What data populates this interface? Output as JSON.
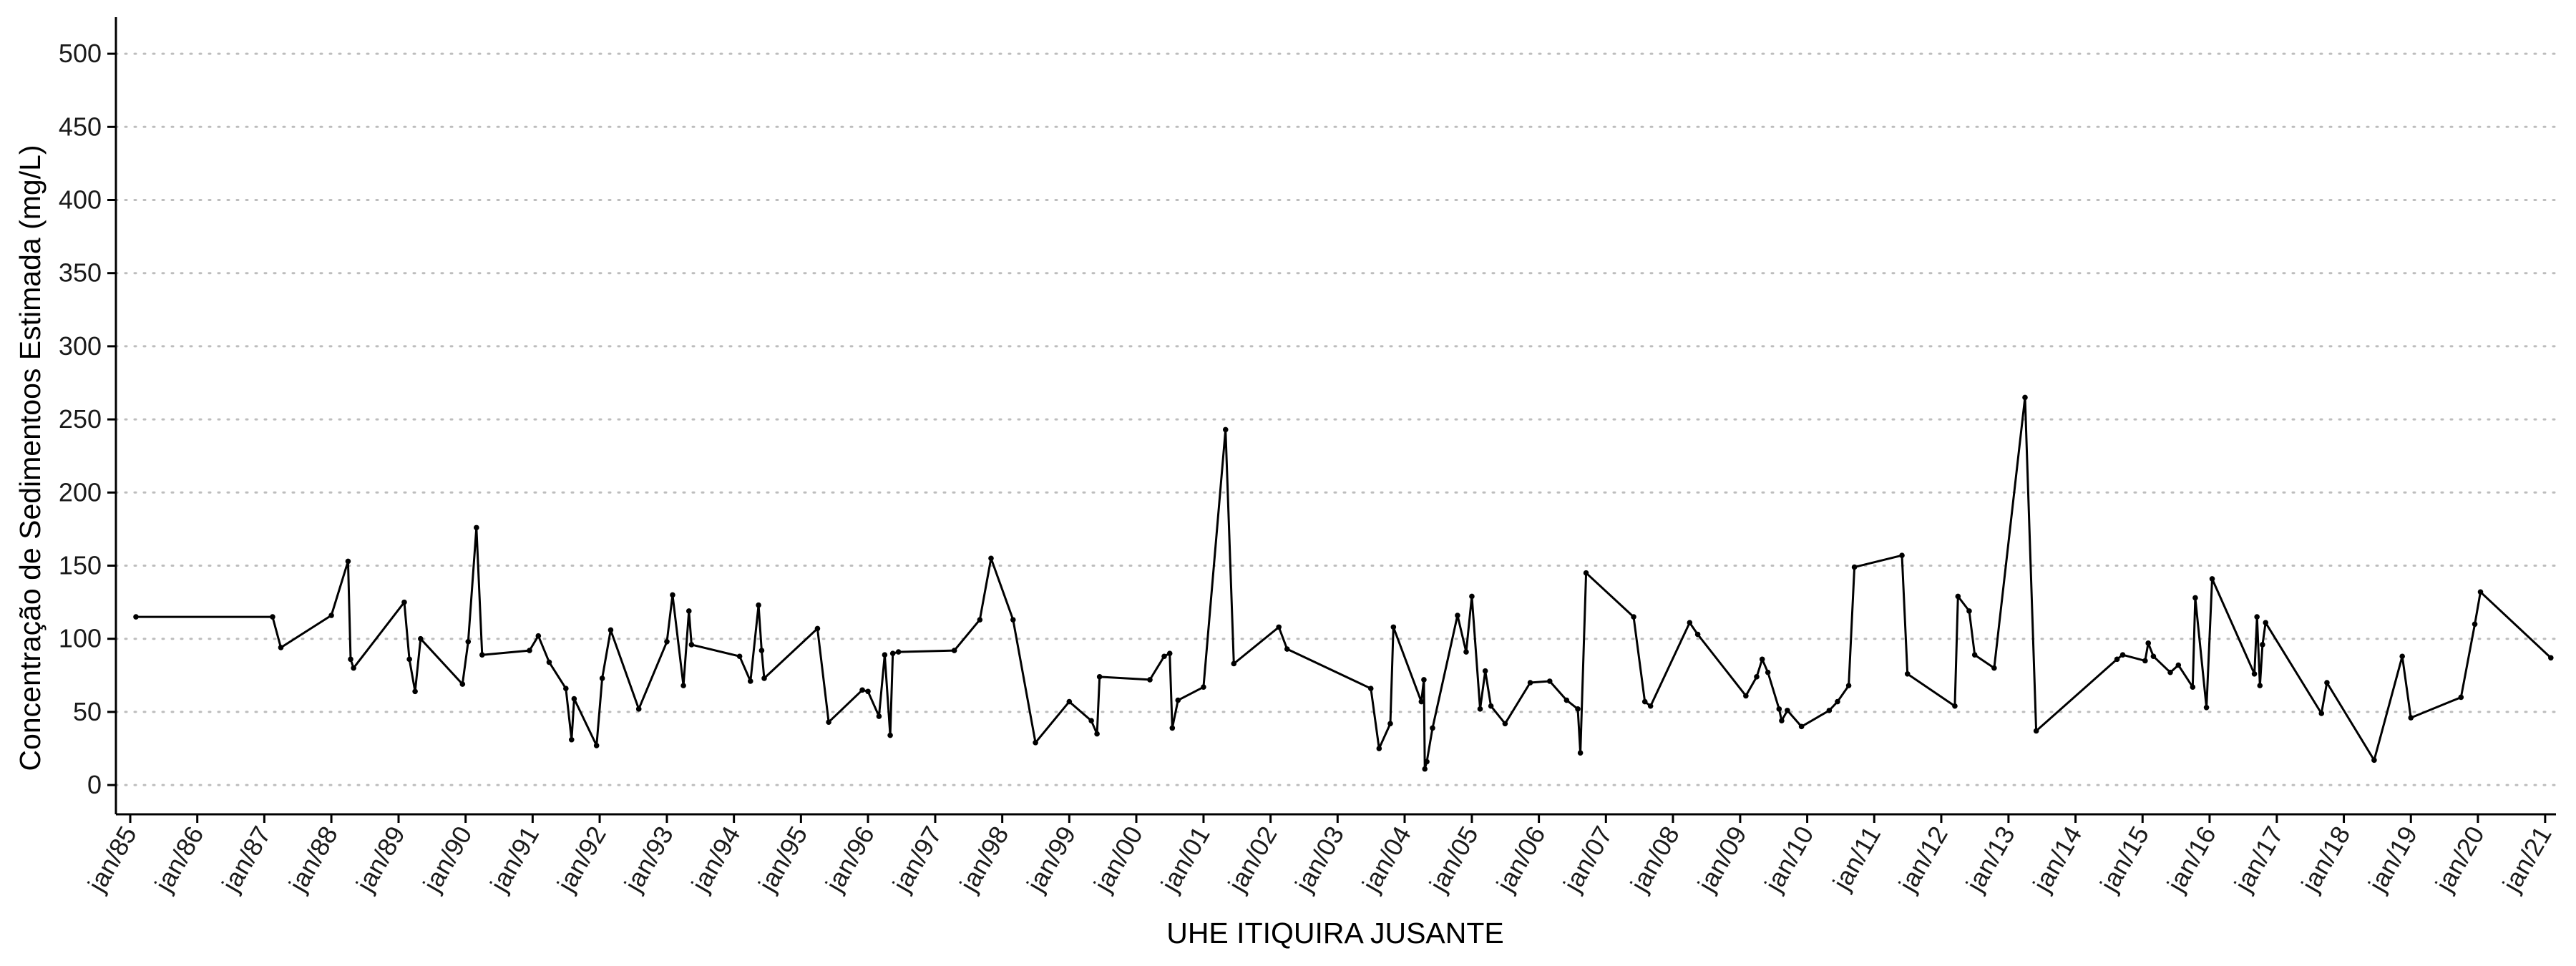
{
  "chart_data": {
    "type": "line",
    "xlabel": "UHE ITIQUIRA JUSANTE",
    "ylabel": "Concentração de Sedimentoos Estimada (mg/L)",
    "ylim": [
      -20,
      525
    ],
    "xlim": [
      "1984-10-15",
      "2021-03-01"
    ],
    "grid": "horizontal dotted",
    "y_ticks": [
      0,
      50,
      100,
      150,
      200,
      250,
      300,
      350,
      400,
      450,
      500
    ],
    "x_ticks": [
      {
        "date": "1985-01-01",
        "label": "jan/85"
      },
      {
        "date": "1986-01-01",
        "label": "jan/86"
      },
      {
        "date": "1987-01-01",
        "label": "jan/87"
      },
      {
        "date": "1988-01-01",
        "label": "jan/88"
      },
      {
        "date": "1989-01-01",
        "label": "jan/89"
      },
      {
        "date": "1990-01-01",
        "label": "jan/90"
      },
      {
        "date": "1991-01-01",
        "label": "jan/91"
      },
      {
        "date": "1992-01-01",
        "label": "jan/92"
      },
      {
        "date": "1993-01-01",
        "label": "jan/93"
      },
      {
        "date": "1994-01-01",
        "label": "jan/94"
      },
      {
        "date": "1995-01-01",
        "label": "jan/95"
      },
      {
        "date": "1996-01-01",
        "label": "jan/96"
      },
      {
        "date": "1997-01-01",
        "label": "jan/97"
      },
      {
        "date": "1998-01-01",
        "label": "jan/98"
      },
      {
        "date": "1999-01-01",
        "label": "jan/99"
      },
      {
        "date": "2000-01-01",
        "label": "jan/00"
      },
      {
        "date": "2001-01-01",
        "label": "jan/01"
      },
      {
        "date": "2002-01-01",
        "label": "jan/02"
      },
      {
        "date": "2003-01-01",
        "label": "jan/03"
      },
      {
        "date": "2004-01-01",
        "label": "jan/04"
      },
      {
        "date": "2005-01-01",
        "label": "jan/05"
      },
      {
        "date": "2006-01-01",
        "label": "jan/06"
      },
      {
        "date": "2007-01-01",
        "label": "jan/07"
      },
      {
        "date": "2008-01-01",
        "label": "jan/08"
      },
      {
        "date": "2009-01-01",
        "label": "jan/09"
      },
      {
        "date": "2010-01-01",
        "label": "jan/10"
      },
      {
        "date": "2011-01-01",
        "label": "jan/11"
      },
      {
        "date": "2012-01-01",
        "label": "jan/12"
      },
      {
        "date": "2013-01-01",
        "label": "jan/13"
      },
      {
        "date": "2014-01-01",
        "label": "jan/14"
      },
      {
        "date": "2015-01-01",
        "label": "jan/15"
      },
      {
        "date": "2016-01-01",
        "label": "jan/16"
      },
      {
        "date": "2017-01-01",
        "label": "jan/17"
      },
      {
        "date": "2018-01-01",
        "label": "jan/18"
      },
      {
        "date": "2019-01-01",
        "label": "jan/19"
      },
      {
        "date": "2020-01-01",
        "label": "jan/20"
      },
      {
        "date": "2021-01-01",
        "label": "jan/21"
      }
    ],
    "series": [
      {
        "color": "#000000",
        "points": [
          [
            "1985-02-01",
            115
          ],
          [
            "1987-02-15",
            115
          ],
          [
            "1987-04-01",
            94
          ],
          [
            "1988-01-01",
            116
          ],
          [
            "1988-04-01",
            153
          ],
          [
            "1988-04-15",
            86
          ],
          [
            "1988-05-01",
            80
          ],
          [
            "1989-02-01",
            125
          ],
          [
            "1989-03-01",
            86
          ],
          [
            "1989-04-01",
            64
          ],
          [
            "1989-05-01",
            100
          ],
          [
            "1989-12-15",
            69
          ],
          [
            "1990-01-15",
            98
          ],
          [
            "1990-03-01",
            176
          ],
          [
            "1990-04-01",
            89
          ],
          [
            "1990-12-15",
            92
          ],
          [
            "1991-02-01",
            102
          ],
          [
            "1991-04-01",
            84
          ],
          [
            "1991-07-01",
            66
          ],
          [
            "1991-08-01",
            31
          ],
          [
            "1991-08-15",
            59
          ],
          [
            "1991-12-15",
            27
          ],
          [
            "1992-01-15",
            73
          ],
          [
            "1992-03-01",
            106
          ],
          [
            "1992-08-01",
            52
          ],
          [
            "1993-01-01",
            98
          ],
          [
            "1993-02-01",
            130
          ],
          [
            "1993-04-01",
            68
          ],
          [
            "1993-05-01",
            119
          ],
          [
            "1993-05-15",
            96
          ],
          [
            "1994-02-01",
            88
          ],
          [
            "1994-04-01",
            71
          ],
          [
            "1994-05-15",
            123
          ],
          [
            "1994-06-01",
            92
          ],
          [
            "1994-06-15",
            73
          ],
          [
            "1995-04-01",
            107
          ],
          [
            "1995-06-01",
            43
          ],
          [
            "1995-12-01",
            65
          ],
          [
            "1996-01-01",
            64
          ],
          [
            "1996-03-01",
            47
          ],
          [
            "1996-04-01",
            89
          ],
          [
            "1996-05-01",
            34
          ],
          [
            "1996-05-15",
            90
          ],
          [
            "1996-06-15",
            91
          ],
          [
            "1997-04-15",
            92
          ],
          [
            "1997-09-01",
            113
          ],
          [
            "1997-11-01",
            155
          ],
          [
            "1998-03-01",
            113
          ],
          [
            "1998-07-01",
            29
          ],
          [
            "1999-01-01",
            57
          ],
          [
            "1999-05-01",
            44
          ],
          [
            "1999-06-01",
            35
          ],
          [
            "1999-06-15",
            74
          ],
          [
            "2000-03-15",
            72
          ],
          [
            "2000-06-01",
            88
          ],
          [
            "2000-07-01",
            90
          ],
          [
            "2000-07-15",
            39
          ],
          [
            "2000-08-15",
            58
          ],
          [
            "2001-01-01",
            67
          ],
          [
            "2001-05-01",
            243
          ],
          [
            "2001-06-15",
            83
          ],
          [
            "2002-02-15",
            108
          ],
          [
            "2002-04-01",
            93
          ],
          [
            "2003-07-01",
            66
          ],
          [
            "2003-08-15",
            25
          ],
          [
            "2003-10-15",
            42
          ],
          [
            "2003-11-01",
            108
          ],
          [
            "2004-04-01",
            57
          ],
          [
            "2004-04-15",
            72
          ],
          [
            "2004-04-20",
            11
          ],
          [
            "2004-05-01",
            16
          ],
          [
            "2004-06-01",
            39
          ],
          [
            "2004-10-15",
            116
          ],
          [
            "2004-12-01",
            91
          ],
          [
            "2005-01-01",
            129
          ],
          [
            "2005-02-15",
            52
          ],
          [
            "2005-03-15",
            78
          ],
          [
            "2005-04-15",
            54
          ],
          [
            "2005-07-01",
            42
          ],
          [
            "2005-11-15",
            70
          ],
          [
            "2006-03-01",
            71
          ],
          [
            "2006-06-01",
            58
          ],
          [
            "2006-08-01",
            52
          ],
          [
            "2006-08-15",
            22
          ],
          [
            "2006-09-15",
            145
          ],
          [
            "2007-06-01",
            115
          ],
          [
            "2007-08-01",
            57
          ],
          [
            "2007-09-01",
            54
          ],
          [
            "2008-04-01",
            111
          ],
          [
            "2008-05-15",
            103
          ],
          [
            "2009-02-01",
            61
          ],
          [
            "2009-04-01",
            74
          ],
          [
            "2009-05-01",
            86
          ],
          [
            "2009-06-01",
            77
          ],
          [
            "2009-08-01",
            52
          ],
          [
            "2009-08-15",
            44
          ],
          [
            "2009-09-15",
            51
          ],
          [
            "2009-12-01",
            40
          ],
          [
            "2010-05-01",
            51
          ],
          [
            "2010-06-15",
            57
          ],
          [
            "2010-08-15",
            68
          ],
          [
            "2010-09-15",
            149
          ],
          [
            "2011-06-01",
            157
          ],
          [
            "2011-07-01",
            76
          ],
          [
            "2012-03-15",
            54
          ],
          [
            "2012-04-01",
            129
          ],
          [
            "2012-06-01",
            119
          ],
          [
            "2012-07-01",
            89
          ],
          [
            "2012-10-15",
            80
          ],
          [
            "2013-04-01",
            265
          ],
          [
            "2013-06-01",
            37
          ],
          [
            "2014-08-15",
            86
          ],
          [
            "2014-09-15",
            89
          ],
          [
            "2015-01-15",
            85
          ],
          [
            "2015-02-01",
            97
          ],
          [
            "2015-03-01",
            88
          ],
          [
            "2015-06-01",
            77
          ],
          [
            "2015-07-15",
            82
          ],
          [
            "2015-10-01",
            67
          ],
          [
            "2015-10-15",
            128
          ],
          [
            "2015-12-15",
            53
          ],
          [
            "2016-01-15",
            141
          ],
          [
            "2016-09-01",
            76
          ],
          [
            "2016-09-15",
            115
          ],
          [
            "2016-10-01",
            68
          ],
          [
            "2016-10-15",
            96
          ],
          [
            "2016-11-01",
            111
          ],
          [
            "2017-09-01",
            49
          ],
          [
            "2017-10-01",
            70
          ],
          [
            "2018-06-15",
            17
          ],
          [
            "2018-11-15",
            88
          ],
          [
            "2019-01-01",
            46
          ],
          [
            "2019-10-01",
            60
          ],
          [
            "2019-12-15",
            110
          ],
          [
            "2020-01-15",
            132
          ],
          [
            "2021-02-01",
            87
          ]
        ]
      }
    ]
  }
}
